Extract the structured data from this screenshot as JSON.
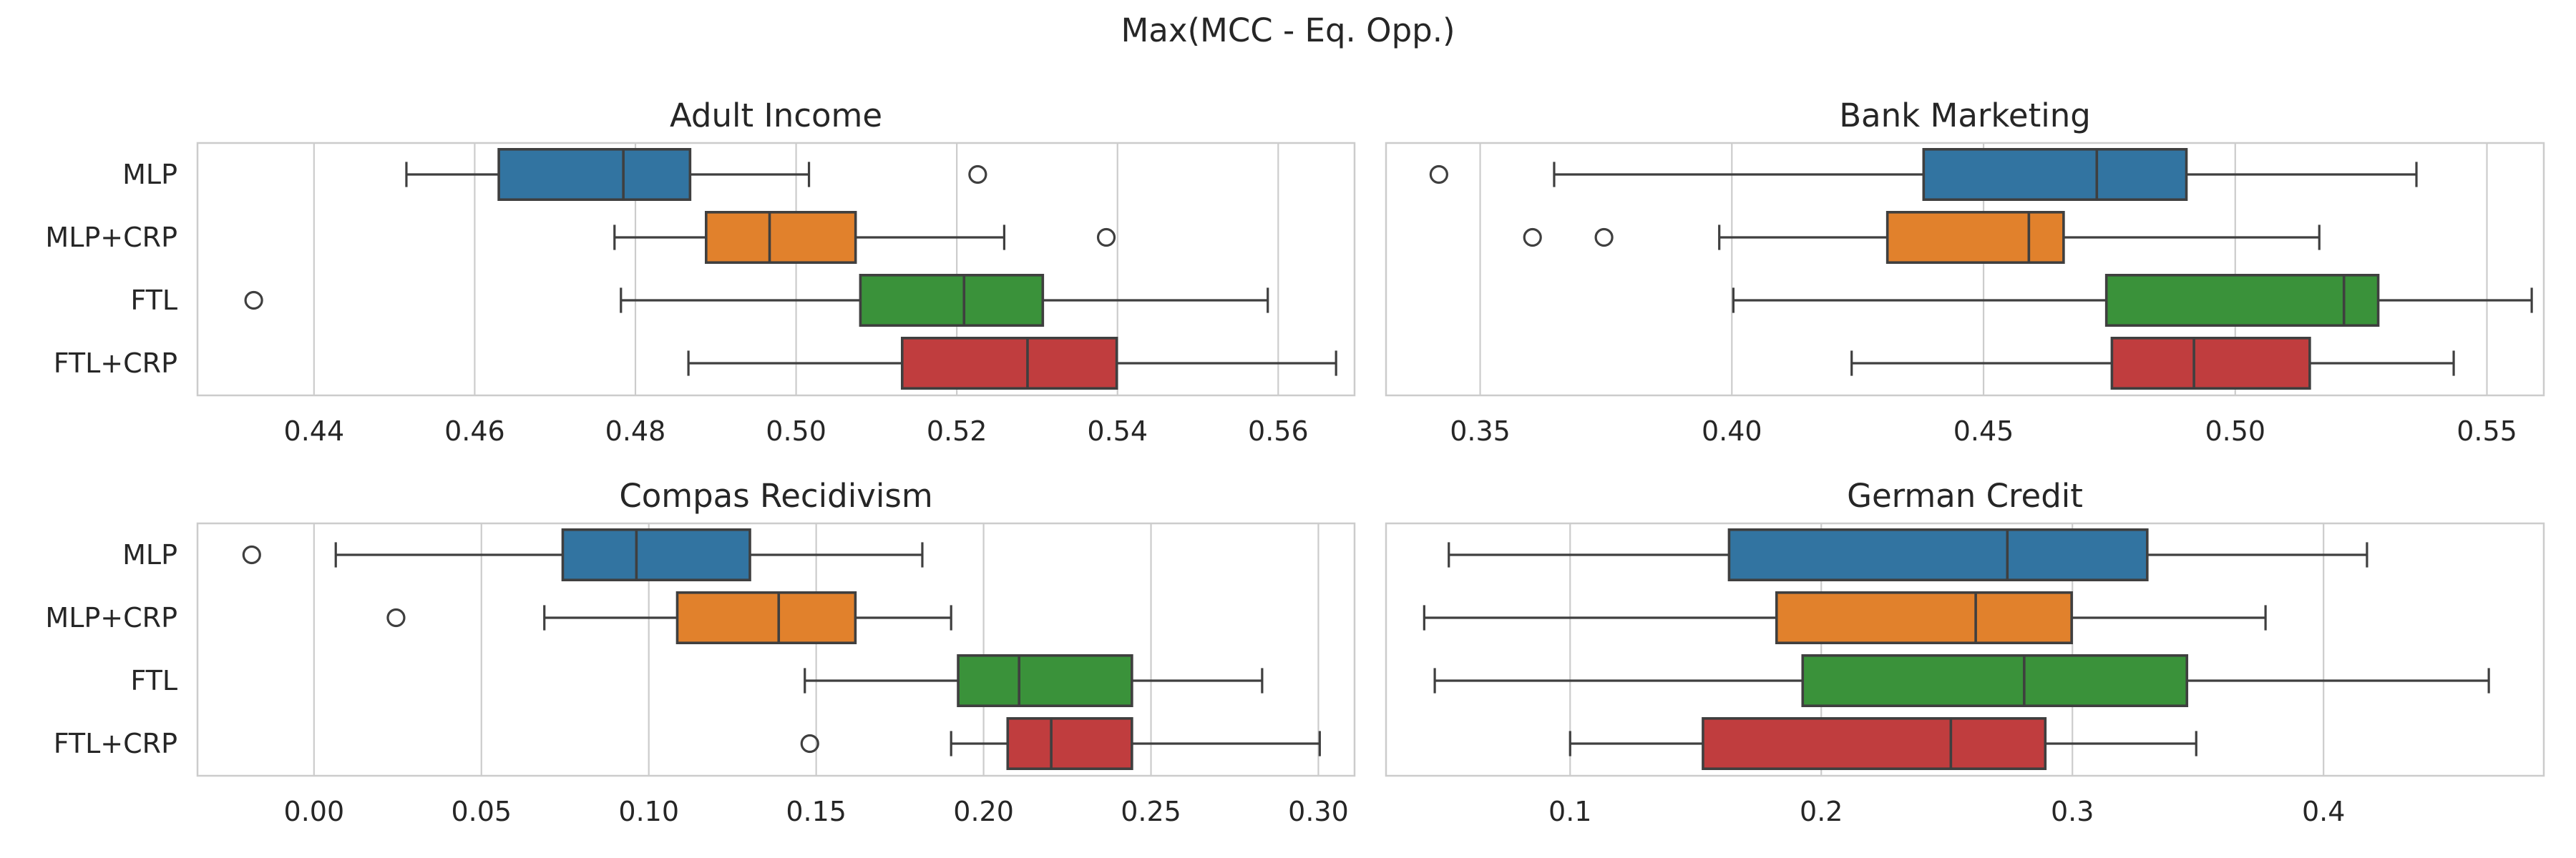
{
  "chart_data": {
    "type": "box",
    "title": "Max(MCC - Eq. Opp.)",
    "categories": [
      "MLP",
      "MLP+CRP",
      "FTL",
      "FTL+CRP"
    ],
    "colors": [
      "#3274a1",
      "#e1812c",
      "#3a923a",
      "#c03d3e"
    ],
    "panels": [
      {
        "title": "Adult Income",
        "xlim": [
          0.4255,
          0.5695
        ],
        "xticks": [
          0.44,
          0.46,
          0.48,
          0.5,
          0.52,
          0.54,
          0.56
        ],
        "xtick_labels": [
          "0.44",
          "0.46",
          "0.48",
          "0.50",
          "0.52",
          "0.54",
          "0.56"
        ],
        "boxes": [
          {
            "label": "MLP",
            "whislo": 0.4515,
            "q1": 0.463,
            "med": 0.4785,
            "q3": 0.4868,
            "whishi": 0.5016,
            "fliers": [
              0.5226
            ]
          },
          {
            "label": "MLP+CRP",
            "whislo": 0.4774,
            "q1": 0.4888,
            "med": 0.4967,
            "q3": 0.5074,
            "whishi": 0.5259,
            "fliers": [
              0.5386
            ]
          },
          {
            "label": "FTL",
            "whislo": 0.4782,
            "q1": 0.508,
            "med": 0.5209,
            "q3": 0.5307,
            "whishi": 0.5587,
            "fliers": [
              0.4325
            ]
          },
          {
            "label": "FTL+CRP",
            "whislo": 0.4866,
            "q1": 0.5132,
            "med": 0.5288,
            "q3": 0.5399,
            "whishi": 0.5672,
            "fliers": []
          }
        ]
      },
      {
        "title": "Bank Marketing",
        "xlim": [
          0.3313,
          0.5613
        ],
        "xticks": [
          0.35,
          0.4,
          0.45,
          0.5,
          0.55
        ],
        "xtick_labels": [
          "0.35",
          "0.40",
          "0.45",
          "0.50",
          "0.55"
        ],
        "boxes": [
          {
            "label": "MLP",
            "whislo": 0.3647,
            "q1": 0.4381,
            "med": 0.4725,
            "q3": 0.4903,
            "whishi": 0.536,
            "fliers": [
              0.3418
            ]
          },
          {
            "label": "MLP+CRP",
            "whislo": 0.3975,
            "q1": 0.4309,
            "med": 0.459,
            "q3": 0.4659,
            "whishi": 0.5167,
            "fliers": [
              0.3604,
              0.3746
            ]
          },
          {
            "label": "FTL",
            "whislo": 0.4003,
            "q1": 0.4744,
            "med": 0.5216,
            "q3": 0.5284,
            "whishi": 0.5589,
            "fliers": []
          },
          {
            "label": "FTL+CRP",
            "whislo": 0.4238,
            "q1": 0.4755,
            "med": 0.4918,
            "q3": 0.5148,
            "whishi": 0.5434,
            "fliers": []
          }
        ]
      },
      {
        "title": "Compas Recidivism",
        "xlim": [
          -0.0348,
          0.3108
        ],
        "xticks": [
          0.0,
          0.05,
          0.1,
          0.15,
          0.2,
          0.25,
          0.3
        ],
        "xtick_labels": [
          "0.00",
          "0.05",
          "0.10",
          "0.15",
          "0.20",
          "0.25",
          "0.30"
        ],
        "boxes": [
          {
            "label": "MLP",
            "whislo": 0.0065,
            "q1": 0.0743,
            "med": 0.0963,
            "q3": 0.1302,
            "whishi": 0.1817,
            "fliers": [
              -0.0186
            ]
          },
          {
            "label": "MLP+CRP",
            "whislo": 0.0688,
            "q1": 0.1085,
            "med": 0.1388,
            "q3": 0.1617,
            "whishi": 0.1903,
            "fliers": [
              0.0245
            ]
          },
          {
            "label": "FTL",
            "whislo": 0.1466,
            "q1": 0.1924,
            "med": 0.2106,
            "q3": 0.2443,
            "whishi": 0.2832,
            "fliers": []
          },
          {
            "label": "FTL+CRP",
            "whislo": 0.1903,
            "q1": 0.2072,
            "med": 0.2202,
            "q3": 0.2443,
            "whishi": 0.3004,
            "fliers": [
              0.1481
            ]
          }
        ]
      },
      {
        "title": "German Credit",
        "xlim": [
          0.0267,
          0.4877
        ],
        "xticks": [
          0.1,
          0.2,
          0.3,
          0.4
        ],
        "xtick_labels": [
          "0.1",
          "0.2",
          "0.3",
          "0.4"
        ],
        "boxes": [
          {
            "label": "MLP",
            "whislo": 0.0517,
            "q1": 0.1633,
            "med": 0.2741,
            "q3": 0.3298,
            "whishi": 0.4173,
            "fliers": []
          },
          {
            "label": "MLP+CRP",
            "whislo": 0.0419,
            "q1": 0.1822,
            "med": 0.2615,
            "q3": 0.2997,
            "whishi": 0.3769,
            "fliers": []
          },
          {
            "label": "FTL",
            "whislo": 0.0461,
            "q1": 0.1926,
            "med": 0.2808,
            "q3": 0.3456,
            "whishi": 0.4658,
            "fliers": []
          },
          {
            "label": "FTL+CRP",
            "whislo": 0.1,
            "q1": 0.1529,
            "med": 0.2516,
            "q3": 0.2892,
            "whishi": 0.3493,
            "fliers": []
          }
        ]
      }
    ]
  }
}
